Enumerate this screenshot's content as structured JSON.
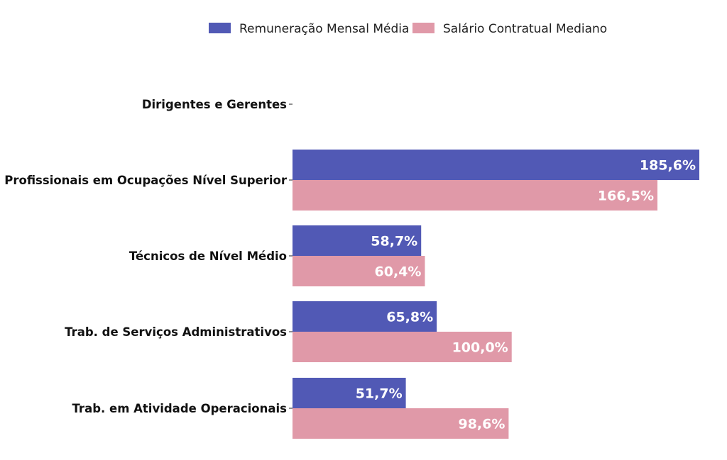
{
  "chart_data": {
    "type": "bar",
    "orientation": "horizontal",
    "title": "",
    "xlabel": "",
    "ylabel": "",
    "grid": false,
    "legend_position": "top-center",
    "xlim": [
      0,
      190
    ],
    "categories": [
      "Dirigentes e Gerentes",
      "Profissionais em Ocupações Nível Superior",
      "Técnicos de Nível Médio",
      "Trab. de Serviços Administrativos",
      "Trab. em Atividade Operacionais"
    ],
    "series": [
      {
        "name": "Remuneração Mensal Média",
        "color": "#5159b5",
        "values": [
          null,
          185.6,
          58.7,
          65.8,
          51.7
        ],
        "labels": [
          "",
          "185,6%",
          "58,7%",
          "65,8%",
          "51,7%"
        ]
      },
      {
        "name": "Salário Contratual Mediano",
        "color": "#e099a8",
        "values": [
          null,
          166.5,
          60.4,
          100.0,
          98.6
        ],
        "labels": [
          "",
          "166,5%",
          "60,4%",
          "100,0%",
          "98,6%"
        ]
      }
    ]
  }
}
